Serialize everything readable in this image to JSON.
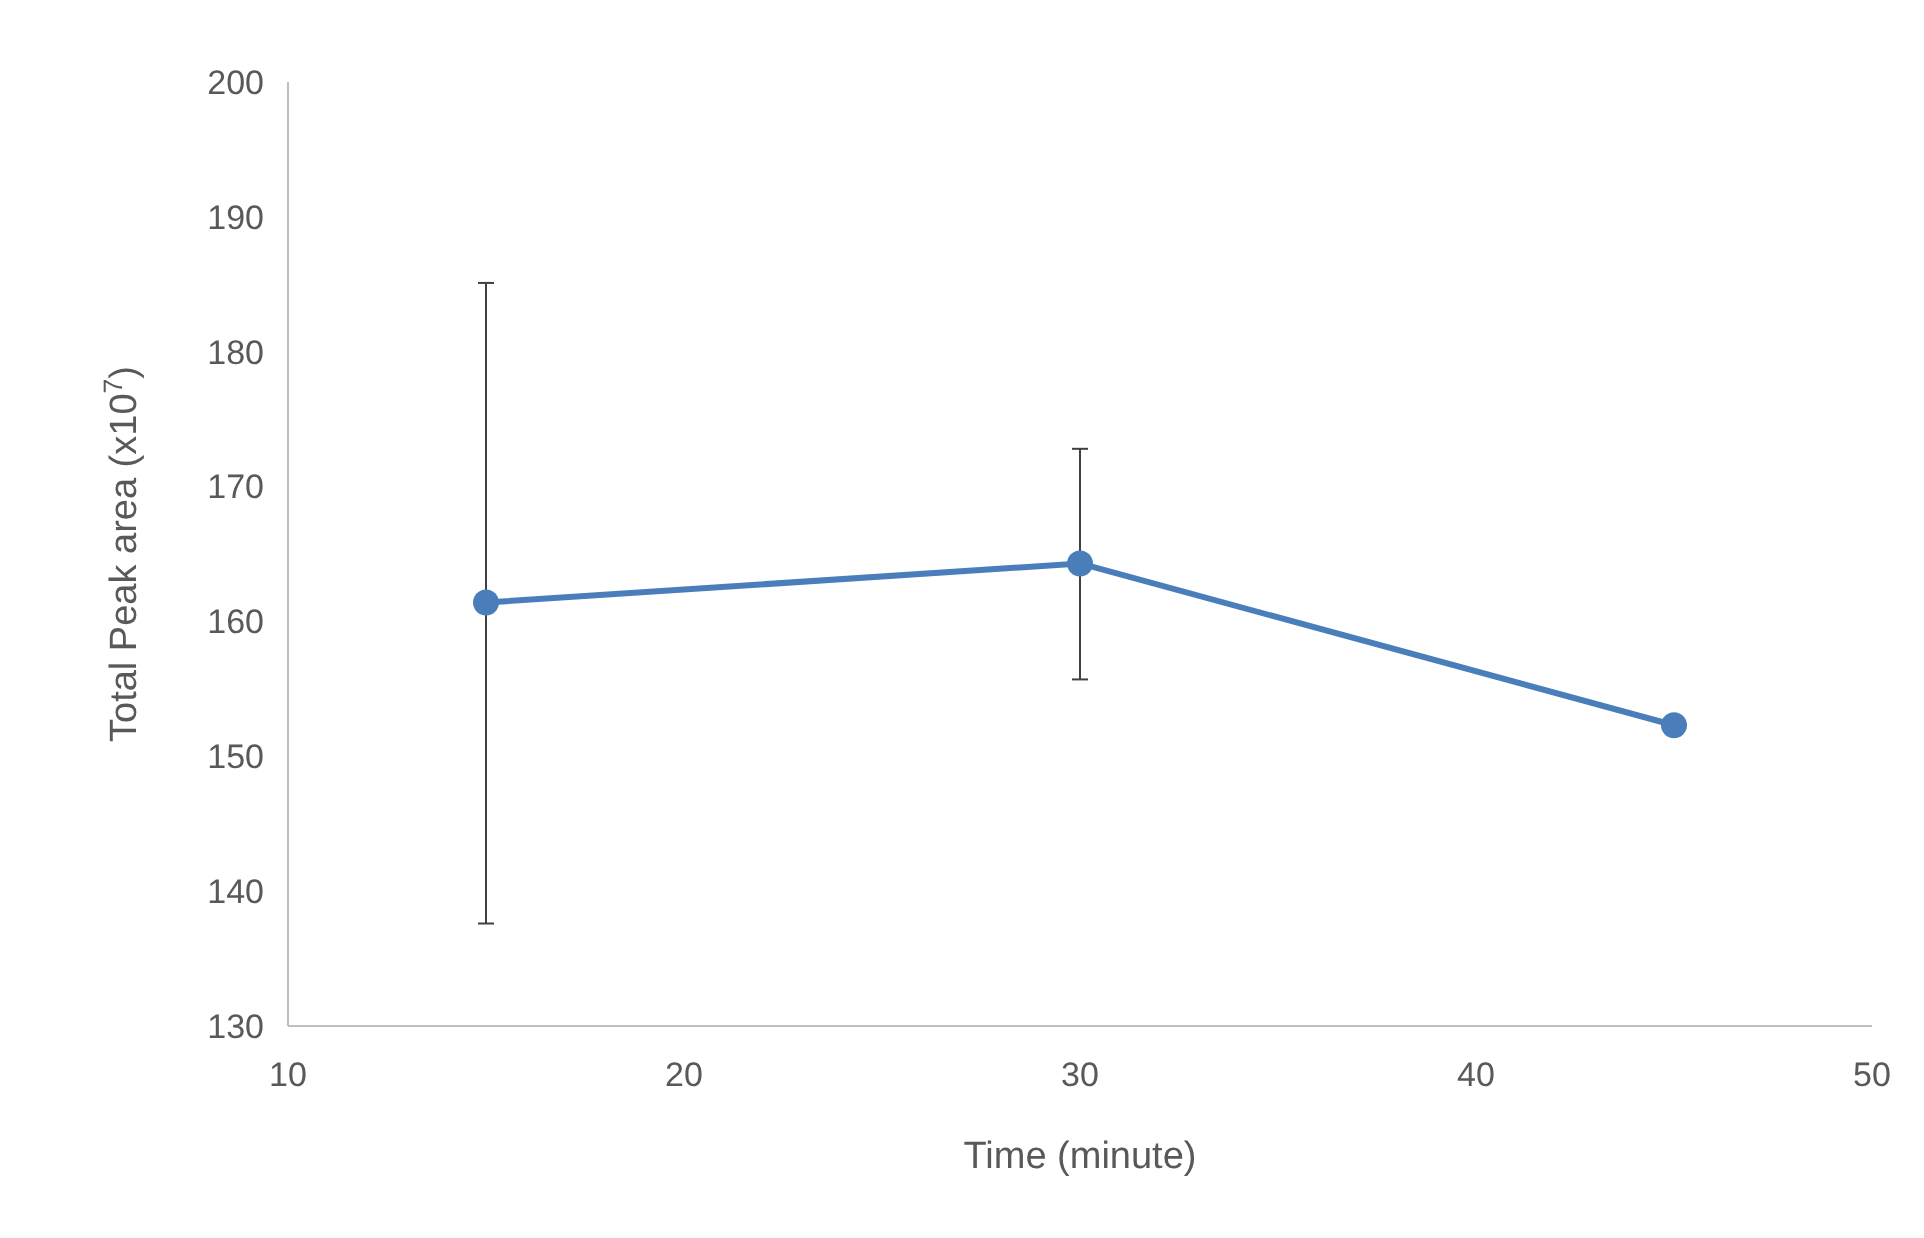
{
  "chart_data": {
    "type": "line",
    "xlabel": "Time (minute)",
    "ylabel": "Total Peak area (x10$^{7}$)",
    "x": [
      15,
      30,
      45
    ],
    "series": [
      {
        "color": "#4a7ebb",
        "values": [
          161.4,
          164.3,
          152.3
        ],
        "errors": [
          [
            137.6,
            185.1
          ],
          [
            155.7,
            172.8
          ],
          null
        ]
      }
    ],
    "xlim": [
      10,
      50
    ],
    "xticks": [
      10,
      20,
      30,
      40,
      50
    ],
    "ylim": [
      130,
      200
    ],
    "yticks": [
      130,
      140,
      150,
      160,
      170,
      180,
      190,
      200
    ],
    "grid": false,
    "marker": "circle",
    "line_style": "solid"
  }
}
